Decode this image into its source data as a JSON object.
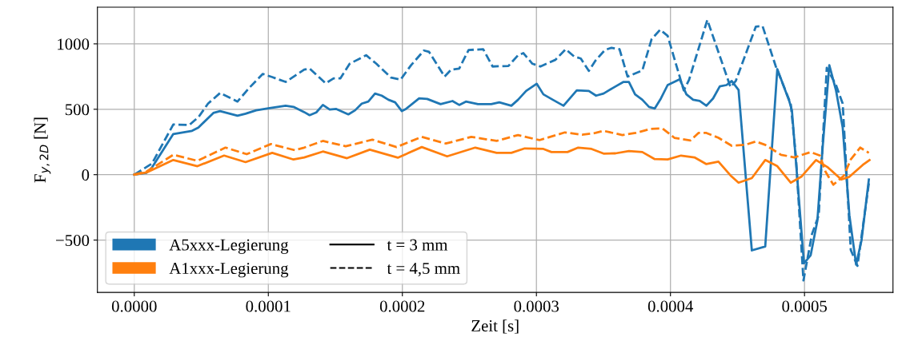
{
  "chart_data": {
    "type": "line",
    "xlabel": "Zeit [s]",
    "ylabel": "F$_{y,2D}$ [N]",
    "xlim": [
      -2.75e-05,
      0.000566
    ],
    "ylim": [
      -900,
      1280
    ],
    "xticks": [
      {
        "value": 0,
        "label": "0.0000"
      },
      {
        "value": 0.0001,
        "label": "0.0001"
      },
      {
        "value": 0.0002,
        "label": "0.0002"
      },
      {
        "value": 0.0003,
        "label": "0.0003"
      },
      {
        "value": 0.0004,
        "label": "0.0004"
      },
      {
        "value": 0.0005,
        "label": "0.0005"
      }
    ],
    "yticks": [
      {
        "value": -500,
        "label": "−500"
      },
      0,
      500,
      1000
    ],
    "grid": true,
    "legend": "bottom left",
    "marker": "none",
    "annotations": [
      "t = 3 mm",
      "t = 4,5 mm"
    ],
    "series": [
      {
        "name": "A5xxx-Legierung",
        "color": "#1f77b4",
        "line_style": "solid",
        "x": [
          0,
          9e-06,
          1.32e-05,
          2.91e-05,
          4.31e-05,
          4.78e-05,
          5.9e-05,
          6.4e-05,
          7.7e-05,
          8.3e-05,
          9.09e-05,
          0.0001009,
          0.0001129,
          0.0001188,
          0.0001268,
          0.0001308,
          0.0001358,
          0.0001407,
          0.0001458,
          0.0001507,
          0.0001597,
          0.0001647,
          0.0001697,
          0.0001746,
          0.0001796,
          0.0001846,
          0.0001896,
          0.0001946,
          0.0001996,
          0.0002026,
          0.0002125,
          0.0002185,
          0.0002285,
          0.0002374,
          0.0002424,
          0.0002474,
          0.0002564,
          0.0002663,
          0.0002723,
          0.0002813,
          0.0002863,
          0.0002923,
          0.0003002,
          0.0003052,
          0.0003122,
          0.0003202,
          0.0003301,
          0.0003391,
          0.0003445,
          0.0003501,
          0.0003581,
          0.000365,
          0.000369,
          0.0003736,
          0.000379,
          0.000384,
          0.0003883,
          0.0003929,
          0.0003979,
          0.0004069,
          0.0004119,
          0.0004169,
          0.0004218,
          0.0004268,
          0.0004318,
          0.0004368,
          0.0004418,
          0.0004457,
          0.0004508,
          0.0004607,
          0.0004707,
          0.0004797,
          0.0004886,
          0.0004906,
          0.0004996,
          0.0005046,
          0.0005096,
          0.0005136,
          0.0005185,
          0.0005235,
          0.0005285,
          0.0005335,
          0.0005385,
          0.0005425,
          0.000548
        ],
        "values": [
          0,
          14,
          55,
          311,
          335,
          360,
          472,
          486,
          451,
          466,
          492,
          508,
          527,
          518,
          478,
          455,
          476,
          533,
          498,
          502,
          461,
          492,
          543,
          559,
          620,
          604,
          573,
          553,
          486,
          502,
          583,
          579,
          539,
          563,
          533,
          559,
          539,
          539,
          553,
          527,
          573,
          640,
          695,
          614,
          573,
          527,
          644,
          640,
          604,
          620,
          669,
          709,
          709,
          614,
          573,
          518,
          506,
          583,
          685,
          730,
          614,
          573,
          563,
          527,
          583,
          675,
          685,
          716,
          648,
          -579,
          -549,
          807,
          563,
          492,
          -677,
          -616,
          -352,
          217,
          837,
          644,
          360,
          -311,
          -687,
          -504,
          -37
        ]
      },
      {
        "color": "#1f77b4",
        "line_style": "dashed",
        "x": [
          0,
          1.32e-05,
          2.91e-05,
          4.11e-05,
          4.8e-05,
          5.5e-05,
          6.4e-05,
          7.7e-05,
          8.59e-05,
          9.59e-05,
          0.0001029,
          0.0001129,
          0.0001268,
          0.0001308,
          0.0001428,
          0.0001487,
          0.0001537,
          0.0001607,
          0.000173,
          0.0001806,
          0.0001916,
          0.0001986,
          0.0002065,
          0.0002161,
          0.0002199,
          0.0002315,
          0.0002364,
          0.0002424,
          0.0002494,
          0.0002603,
          0.0002673,
          0.0002791,
          0.0002863,
          0.0002903,
          0.000297,
          0.000303,
          0.0003142,
          0.0003218,
          0.0003282,
          0.0003331,
          0.0003391,
          0.0003441,
          0.0003511,
          0.000356,
          0.000362,
          0.000368,
          0.000379,
          0.0003859,
          0.0003923,
          0.0003979,
          0.0004099,
          0.0004139,
          0.0004275,
          0.0004448,
          0.0004487,
          0.0004637,
          0.0004687,
          0.0004786,
          0.0004897,
          0.0004936,
          0.0004992,
          0.0005056,
          0.0005106,
          0.0005166,
          0.0005235,
          0.0005285,
          0.0005345,
          0.0005395,
          0.000548
        ],
        "values": [
          0,
          85,
          384,
          380,
          441,
          543,
          624,
          559,
          665,
          770,
          746,
          709,
          803,
          811,
          699,
          736,
          736,
          848,
          913,
          848,
          742,
          726,
          837,
          949,
          939,
          750,
          803,
          811,
          953,
          959,
          827,
          831,
          913,
          929,
          848,
          827,
          878,
          959,
          903,
          888,
          793,
          872,
          953,
          970,
          959,
          750,
          797,
          1035,
          1108,
          1061,
          644,
          726,
          1183,
          669,
          716,
          1132,
          1136,
          827,
          543,
          136,
          -809,
          -453,
          -311,
          817,
          685,
          543,
          -575,
          -697,
          -67
        ]
      },
      {
        "name": "A1xxx-Legierung",
        "color": "#ff7f0e",
        "line_style": "solid",
        "x": [
          0,
          9.2e-06,
          2.91e-05,
          4.71e-05,
          6.7e-05,
          8.3e-05,
          0.0001029,
          0.0001188,
          0.0001268,
          0.0001407,
          0.0001587,
          0.0001757,
          0.0001966,
          0.0002145,
          0.0002334,
          0.0002544,
          0.0002703,
          0.0002813,
          0.0002913,
          0.0003052,
          0.0003112,
          0.0003232,
          0.0003312,
          0.0003411,
          0.0003501,
          0.000359,
          0.000369,
          0.000379,
          0.000388,
          0.0003979,
          0.0004079,
          0.0004179,
          0.0004268,
          0.0004358,
          0.0004448,
          0.0004508,
          0.0004607,
          0.0004707,
          0.0004797,
          0.0004897,
          0.0004976,
          0.0005086,
          0.0005175,
          0.0005275,
          0.0005335,
          0.0005435,
          0.0005485
        ],
        "values": [
          0,
          17,
          112,
          65,
          146,
          96,
          167,
          116,
          132,
          177,
          126,
          191,
          130,
          211,
          140,
          207,
          167,
          167,
          201,
          197,
          173,
          173,
          207,
          197,
          161,
          163,
          181,
          173,
          120,
          116,
          146,
          132,
          81,
          100,
          -6,
          -61,
          -26,
          112,
          65,
          -61,
          -16,
          112,
          55,
          -37,
          -16,
          75,
          112
        ]
      },
      {
        "color": "#ff7f0e",
        "line_style": "dashed",
        "x": [
          0,
          9.2e-06,
          2.91e-05,
          4.71e-05,
          6.8e-05,
          8.39e-05,
          0.0001019,
          0.0001198,
          0.0001268,
          0.0001407,
          0.0001577,
          0.0001776,
          0.0001956,
          0.0002145,
          0.0002325,
          0.0002514,
          0.0002703,
          0.0002863,
          0.0003022,
          0.0003212,
          0.0003341,
          0.0003441,
          0.0003501,
          0.0003641,
          0.000374,
          0.000385,
          0.000394,
          0.0004029,
          0.0004149,
          0.0004209,
          0.0004268,
          0.0004358,
          0.0004457,
          0.0004557,
          0.0004637,
          0.0004707,
          0.0004825,
          0.0004925,
          0.0005046,
          0.0005115,
          0.0005156,
          0.0005215,
          0.0005295,
          0.0005345,
          0.0005415,
          0.000548
        ],
        "values": [
          0,
          24,
          152,
          106,
          207,
          157,
          234,
          187,
          207,
          258,
          217,
          268,
          211,
          289,
          238,
          289,
          258,
          303,
          264,
          323,
          305,
          319,
          335,
          303,
          319,
          350,
          354,
          282,
          262,
          319,
          319,
          282,
          221,
          228,
          254,
          228,
          152,
          132,
          173,
          146,
          24,
          -77,
          -6,
          116,
          207,
          167
        ]
      }
    ]
  }
}
